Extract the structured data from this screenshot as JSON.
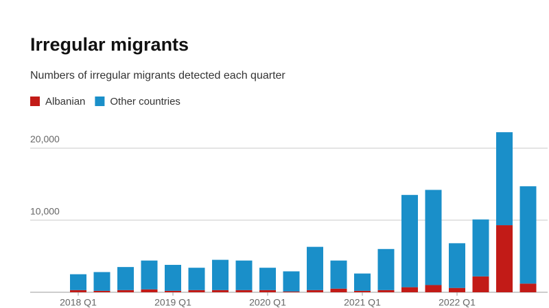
{
  "chart_data": {
    "type": "stacked_bar",
    "title": "Irregular migrants",
    "subtitle": "Numbers of irregular migrants detected each quarter",
    "categories": [
      "2018 Q1",
      null,
      null,
      null,
      "2019 Q1",
      null,
      null,
      null,
      "2020 Q1",
      null,
      null,
      null,
      "2021 Q1",
      null,
      null,
      null,
      "2022 Q1",
      null,
      null,
      null
    ],
    "series": [
      {
        "name": "Albanian",
        "color": "#c21b17",
        "values": [
          300,
          200,
          300,
          400,
          200,
          300,
          300,
          300,
          300,
          100,
          300,
          500,
          200,
          300,
          700,
          1000,
          600,
          2200,
          9300,
          1200
        ]
      },
      {
        "name": "Other countries",
        "color": "#1a8fc9",
        "values": [
          2200,
          2600,
          3200,
          4000,
          3600,
          3100,
          4200,
          4100,
          3100,
          2800,
          6000,
          3900,
          2400,
          5700,
          12800,
          13200,
          6200,
          7900,
          12900,
          13500
        ]
      }
    ],
    "ylim": [
      0,
      22500
    ],
    "yticks": [
      {
        "value": 10000,
        "label": "10,000"
      },
      {
        "value": 20000,
        "label": "20,000"
      }
    ],
    "grid": true
  }
}
